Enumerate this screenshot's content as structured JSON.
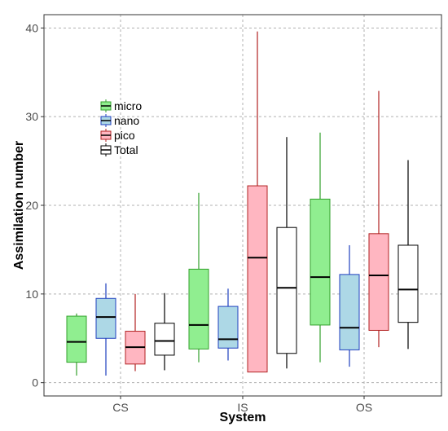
{
  "chart_data": {
    "type": "box",
    "title": "",
    "xlabel": "System",
    "ylabel": "Assimilation number",
    "ylim": [
      -1.5,
      41.5
    ],
    "yticks": [
      0,
      10,
      20,
      30,
      40
    ],
    "grid": true,
    "legend": "top-left",
    "categories": [
      "CS",
      "IS",
      "OS"
    ],
    "series": [
      {
        "name": "micro",
        "fill": "#90ee90",
        "stroke": "#33a02c",
        "boxes": [
          {
            "whisker_low": 0.8,
            "q1": 2.3,
            "median": 4.6,
            "q3": 7.5,
            "whisker_high": 7.8
          },
          {
            "whisker_low": 2.3,
            "q1": 3.8,
            "median": 6.5,
            "q3": 12.8,
            "whisker_high": 21.4
          },
          {
            "whisker_low": 2.3,
            "q1": 6.5,
            "median": 11.9,
            "q3": 20.7,
            "whisker_high": 28.2
          }
        ]
      },
      {
        "name": "nano",
        "fill": "#add8e6",
        "stroke": "#1f3fbf",
        "boxes": [
          {
            "whisker_low": 0.8,
            "q1": 5.0,
            "median": 7.4,
            "q3": 9.5,
            "whisker_high": 11.2
          },
          {
            "whisker_low": 2.5,
            "q1": 3.9,
            "median": 4.9,
            "q3": 8.6,
            "whisker_high": 10.6
          },
          {
            "whisker_low": 1.8,
            "q1": 3.7,
            "median": 6.2,
            "q3": 12.2,
            "whisker_high": 15.5
          }
        ]
      },
      {
        "name": "pico",
        "fill": "#ffb6c1",
        "stroke": "#b22222",
        "boxes": [
          {
            "whisker_low": 1.3,
            "q1": 2.1,
            "median": 4.0,
            "q3": 5.8,
            "whisker_high": 10.0
          },
          {
            "whisker_low": 1.2,
            "q1": 1.2,
            "median": 14.1,
            "q3": 22.2,
            "whisker_high": 39.6
          },
          {
            "whisker_low": 4.0,
            "q1": 5.9,
            "median": 12.1,
            "q3": 16.8,
            "whisker_high": 32.9
          }
        ]
      },
      {
        "name": "Total",
        "fill": "#ffffff",
        "stroke": "#000000",
        "boxes": [
          {
            "whisker_low": 1.4,
            "q1": 3.1,
            "median": 4.7,
            "q3": 6.7,
            "whisker_high": 10.1
          },
          {
            "whisker_low": 1.6,
            "q1": 3.3,
            "median": 10.7,
            "q3": 17.5,
            "whisker_high": 27.7
          },
          {
            "whisker_low": 3.8,
            "q1": 6.8,
            "median": 10.5,
            "q3": 15.5,
            "whisker_high": 25.1
          }
        ]
      }
    ]
  }
}
